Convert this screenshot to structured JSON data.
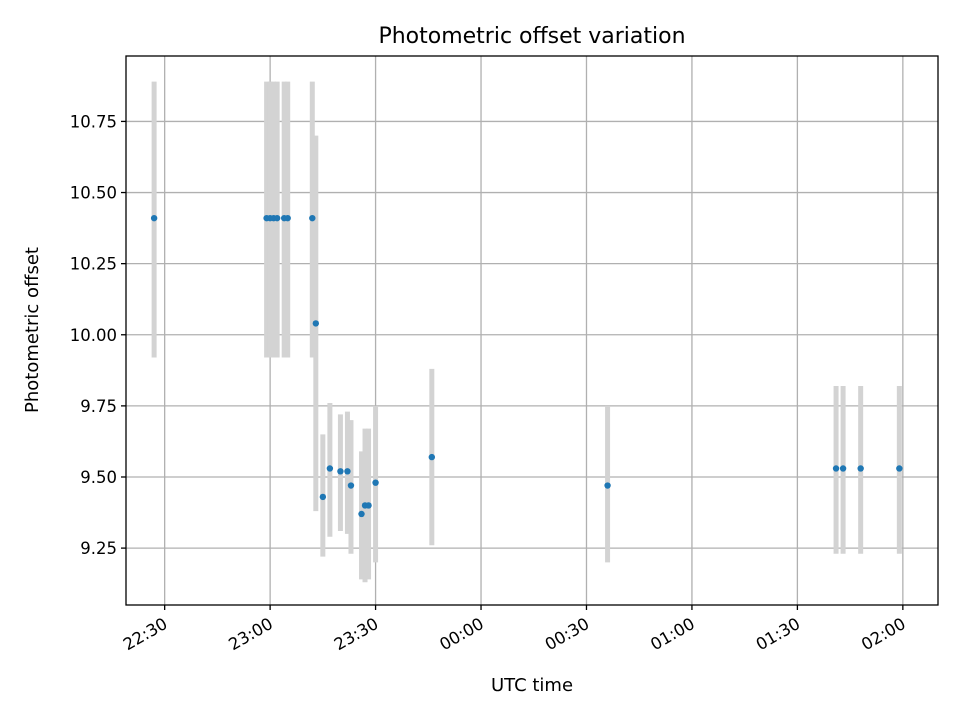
{
  "chart_data": {
    "type": "scatter",
    "title": "Photometric offset variation",
    "xlabel": "UTC time",
    "ylabel": "Photometric offset",
    "xlim": [
      "22:19",
      "02:10"
    ],
    "ylim": [
      9.05,
      10.98
    ],
    "grid": true,
    "x_ticks": [
      "22:30",
      "23:00",
      "23:30",
      "00:00",
      "00:30",
      "01:00",
      "01:30",
      "02:00"
    ],
    "y_ticks": [
      9.25,
      9.5,
      9.75,
      10.0,
      10.25,
      10.5,
      10.75
    ],
    "marker_color": "#1f77b4",
    "errorbar_color": "#d3d3d3",
    "points": [
      {
        "time": "22:27",
        "y": 10.41,
        "yerr_low": 9.92,
        "yerr_high": 10.89
      },
      {
        "time": "22:59",
        "y": 10.41,
        "yerr_low": 9.92,
        "yerr_high": 10.89
      },
      {
        "time": "23:00",
        "y": 10.41,
        "yerr_low": 9.92,
        "yerr_high": 10.89
      },
      {
        "time": "23:01",
        "y": 10.41,
        "yerr_low": 9.92,
        "yerr_high": 10.89
      },
      {
        "time": "23:02",
        "y": 10.41,
        "yerr_low": 9.92,
        "yerr_high": 10.89
      },
      {
        "time": "23:04",
        "y": 10.41,
        "yerr_low": 9.92,
        "yerr_high": 10.89
      },
      {
        "time": "23:05",
        "y": 10.41,
        "yerr_low": 9.92,
        "yerr_high": 10.89
      },
      {
        "time": "23:12",
        "y": 10.41,
        "yerr_low": 9.92,
        "yerr_high": 10.89
      },
      {
        "time": "23:13",
        "y": 10.04,
        "yerr_low": 9.38,
        "yerr_high": 10.7
      },
      {
        "time": "23:15",
        "y": 9.43,
        "yerr_low": 9.22,
        "yerr_high": 9.65
      },
      {
        "time": "23:17",
        "y": 9.53,
        "yerr_low": 9.29,
        "yerr_high": 9.76
      },
      {
        "time": "23:20",
        "y": 9.52,
        "yerr_low": 9.31,
        "yerr_high": 9.72
      },
      {
        "time": "23:22",
        "y": 9.52,
        "yerr_low": 9.3,
        "yerr_high": 9.73
      },
      {
        "time": "23:23",
        "y": 9.47,
        "yerr_low": 9.23,
        "yerr_high": 9.7
      },
      {
        "time": "23:26",
        "y": 9.37,
        "yerr_low": 9.14,
        "yerr_high": 9.59
      },
      {
        "time": "23:27",
        "y": 9.4,
        "yerr_low": 9.13,
        "yerr_high": 9.67
      },
      {
        "time": "23:28",
        "y": 9.4,
        "yerr_low": 9.14,
        "yerr_high": 9.67
      },
      {
        "time": "23:30",
        "y": 9.48,
        "yerr_low": 9.2,
        "yerr_high": 9.75
      },
      {
        "time": "23:46",
        "y": 9.57,
        "yerr_low": 9.26,
        "yerr_high": 9.88
      },
      {
        "time": "00:36",
        "y": 9.47,
        "yerr_low": 9.2,
        "yerr_high": 9.75
      },
      {
        "time": "01:41",
        "y": 9.53,
        "yerr_low": 9.23,
        "yerr_high": 9.82
      },
      {
        "time": "01:43",
        "y": 9.53,
        "yerr_low": 9.23,
        "yerr_high": 9.82
      },
      {
        "time": "01:48",
        "y": 9.53,
        "yerr_low": 9.23,
        "yerr_high": 9.82
      },
      {
        "time": "01:59",
        "y": 9.53,
        "yerr_low": 9.23,
        "yerr_high": 9.82
      }
    ]
  }
}
